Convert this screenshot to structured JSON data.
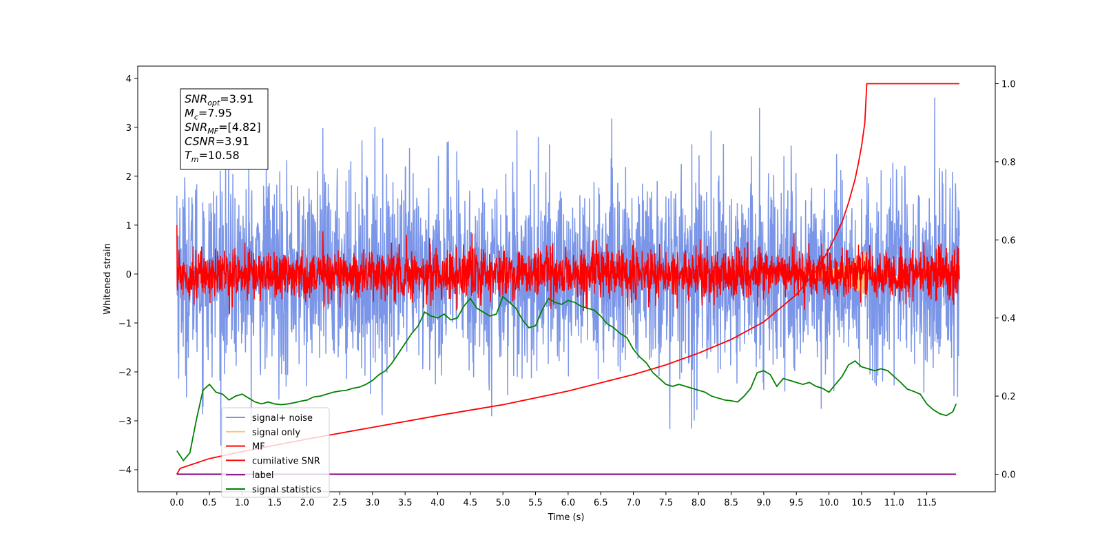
{
  "chart_data": {
    "type": "line",
    "xlabel": "Time (s)",
    "ylabel": "Whitened strain",
    "xlim": [
      -0.6,
      12.55
    ],
    "ylim": [
      -4.45,
      4.25
    ],
    "y2lim": [
      -0.045,
      1.045
    ],
    "x_ticks": [
      "0.0",
      "0.5",
      "1.0",
      "1.5",
      "2.0",
      "2.5",
      "3.0",
      "3.5",
      "4.0",
      "4.5",
      "5.0",
      "5.5",
      "6.0",
      "6.5",
      "7.0",
      "7.5",
      "8.0",
      "8.5",
      "9.0",
      "9.5",
      "10.0",
      "10.5",
      "11.0",
      "11.5"
    ],
    "y_ticks": [
      "4",
      "3",
      "2",
      "1",
      "0",
      "−1",
      "−2",
      "−3",
      "−4"
    ],
    "y2_ticks": [
      "1.0",
      "0.8",
      "0.6",
      "0.4",
      "0.2",
      "0.0"
    ],
    "grid": false,
    "legend_position": "lower-left",
    "stats_box": {
      "lines": [
        {
          "base": "SNR",
          "sub": "opt",
          "value": "=3.91"
        },
        {
          "base": "M",
          "sub": "c",
          "value": "=7.95"
        },
        {
          "base": "SNR",
          "sub": "MF",
          "value": "=[4.82]"
        },
        {
          "base": "CSNR",
          "sub": "",
          "value": "=3.91"
        },
        {
          "base": "T",
          "sub": "m",
          "value": "=10.58"
        }
      ]
    },
    "series": [
      {
        "name": "signal+ noise",
        "color": "#7b96e8",
        "axis": "left",
        "kind": "noise",
        "amplitude": 1.0,
        "t_start": 0.0,
        "t_end": 12.0
      },
      {
        "name": "signal only",
        "color": "#f5c97a",
        "axis": "left",
        "kind": "chirp",
        "t_start": 9.5,
        "t_end": 10.58
      },
      {
        "name": "MF",
        "color": "#ff0000",
        "axis": "left",
        "kind": "noise",
        "amplitude": 0.25,
        "t_start": 0.0,
        "t_end": 12.0
      },
      {
        "name": "cumilative SNR",
        "color": "#ff0000",
        "axis": "right",
        "kind": "curve",
        "x": [
          0.0,
          0.05,
          0.5,
          1.0,
          2.0,
          3.0,
          4.0,
          5.0,
          6.0,
          7.0,
          7.5,
          8.0,
          8.5,
          9.0,
          9.5,
          9.8,
          10.0,
          10.2,
          10.3,
          10.4,
          10.45,
          10.5,
          10.55,
          10.58,
          11.5,
          12.0
        ],
        "values": [
          0.0,
          0.015,
          0.04,
          0.058,
          0.09,
          0.12,
          0.15,
          0.178,
          0.213,
          0.255,
          0.28,
          0.31,
          0.345,
          0.39,
          0.46,
          0.52,
          0.575,
          0.645,
          0.695,
          0.755,
          0.795,
          0.84,
          0.9,
          1.0,
          1.0,
          1.0
        ]
      },
      {
        "name": "label",
        "color": "#800080",
        "axis": "right",
        "kind": "curve",
        "x": [
          0.0,
          11.95
        ],
        "values": [
          0.0,
          0.0
        ]
      },
      {
        "name": "signal statistics",
        "color": "#008000",
        "axis": "right",
        "kind": "curve",
        "x": [
          0.0,
          0.1,
          0.2,
          0.3,
          0.4,
          0.5,
          0.6,
          0.7,
          0.8,
          0.9,
          1.0,
          1.1,
          1.2,
          1.3,
          1.4,
          1.5,
          1.6,
          1.7,
          1.8,
          1.9,
          2.0,
          2.1,
          2.2,
          2.3,
          2.4,
          2.5,
          2.6,
          2.7,
          2.8,
          2.9,
          3.0,
          3.1,
          3.2,
          3.3,
          3.4,
          3.5,
          3.6,
          3.7,
          3.8,
          3.9,
          4.0,
          4.1,
          4.2,
          4.3,
          4.4,
          4.5,
          4.6,
          4.7,
          4.8,
          4.9,
          5.0,
          5.1,
          5.2,
          5.3,
          5.4,
          5.5,
          5.6,
          5.7,
          5.8,
          5.9,
          6.0,
          6.1,
          6.2,
          6.3,
          6.4,
          6.5,
          6.6,
          6.7,
          6.8,
          6.9,
          7.0,
          7.1,
          7.2,
          7.3,
          7.4,
          7.5,
          7.6,
          7.7,
          7.8,
          7.9,
          8.0,
          8.1,
          8.2,
          8.3,
          8.4,
          8.5,
          8.6,
          8.7,
          8.8,
          8.9,
          9.0,
          9.1,
          9.2,
          9.3,
          9.4,
          9.5,
          9.6,
          9.7,
          9.8,
          9.9,
          10.0,
          10.1,
          10.2,
          10.3,
          10.4,
          10.5,
          10.6,
          10.7,
          10.8,
          10.9,
          11.0,
          11.1,
          11.2,
          11.3,
          11.4,
          11.5,
          11.6,
          11.7,
          11.8,
          11.9,
          11.95
        ],
        "values": [
          0.06,
          0.035,
          0.055,
          0.14,
          0.215,
          0.23,
          0.21,
          0.205,
          0.19,
          0.2,
          0.205,
          0.195,
          0.185,
          0.18,
          0.185,
          0.18,
          0.178,
          0.18,
          0.183,
          0.187,
          0.19,
          0.198,
          0.2,
          0.205,
          0.21,
          0.213,
          0.215,
          0.22,
          0.223,
          0.23,
          0.24,
          0.255,
          0.265,
          0.285,
          0.31,
          0.335,
          0.36,
          0.38,
          0.415,
          0.405,
          0.4,
          0.41,
          0.395,
          0.4,
          0.43,
          0.45,
          0.425,
          0.415,
          0.405,
          0.41,
          0.455,
          0.44,
          0.425,
          0.395,
          0.375,
          0.38,
          0.42,
          0.45,
          0.44,
          0.435,
          0.445,
          0.44,
          0.43,
          0.425,
          0.42,
          0.405,
          0.385,
          0.375,
          0.36,
          0.35,
          0.32,
          0.3,
          0.285,
          0.26,
          0.245,
          0.23,
          0.225,
          0.23,
          0.225,
          0.22,
          0.215,
          0.21,
          0.2,
          0.195,
          0.19,
          0.188,
          0.185,
          0.2,
          0.22,
          0.26,
          0.265,
          0.255,
          0.225,
          0.245,
          0.24,
          0.235,
          0.23,
          0.235,
          0.225,
          0.22,
          0.21,
          0.23,
          0.25,
          0.28,
          0.29,
          0.275,
          0.27,
          0.265,
          0.27,
          0.265,
          0.25,
          0.235,
          0.218,
          0.212,
          0.205,
          0.18,
          0.165,
          0.155,
          0.15,
          0.16,
          0.18
        ]
      }
    ]
  }
}
